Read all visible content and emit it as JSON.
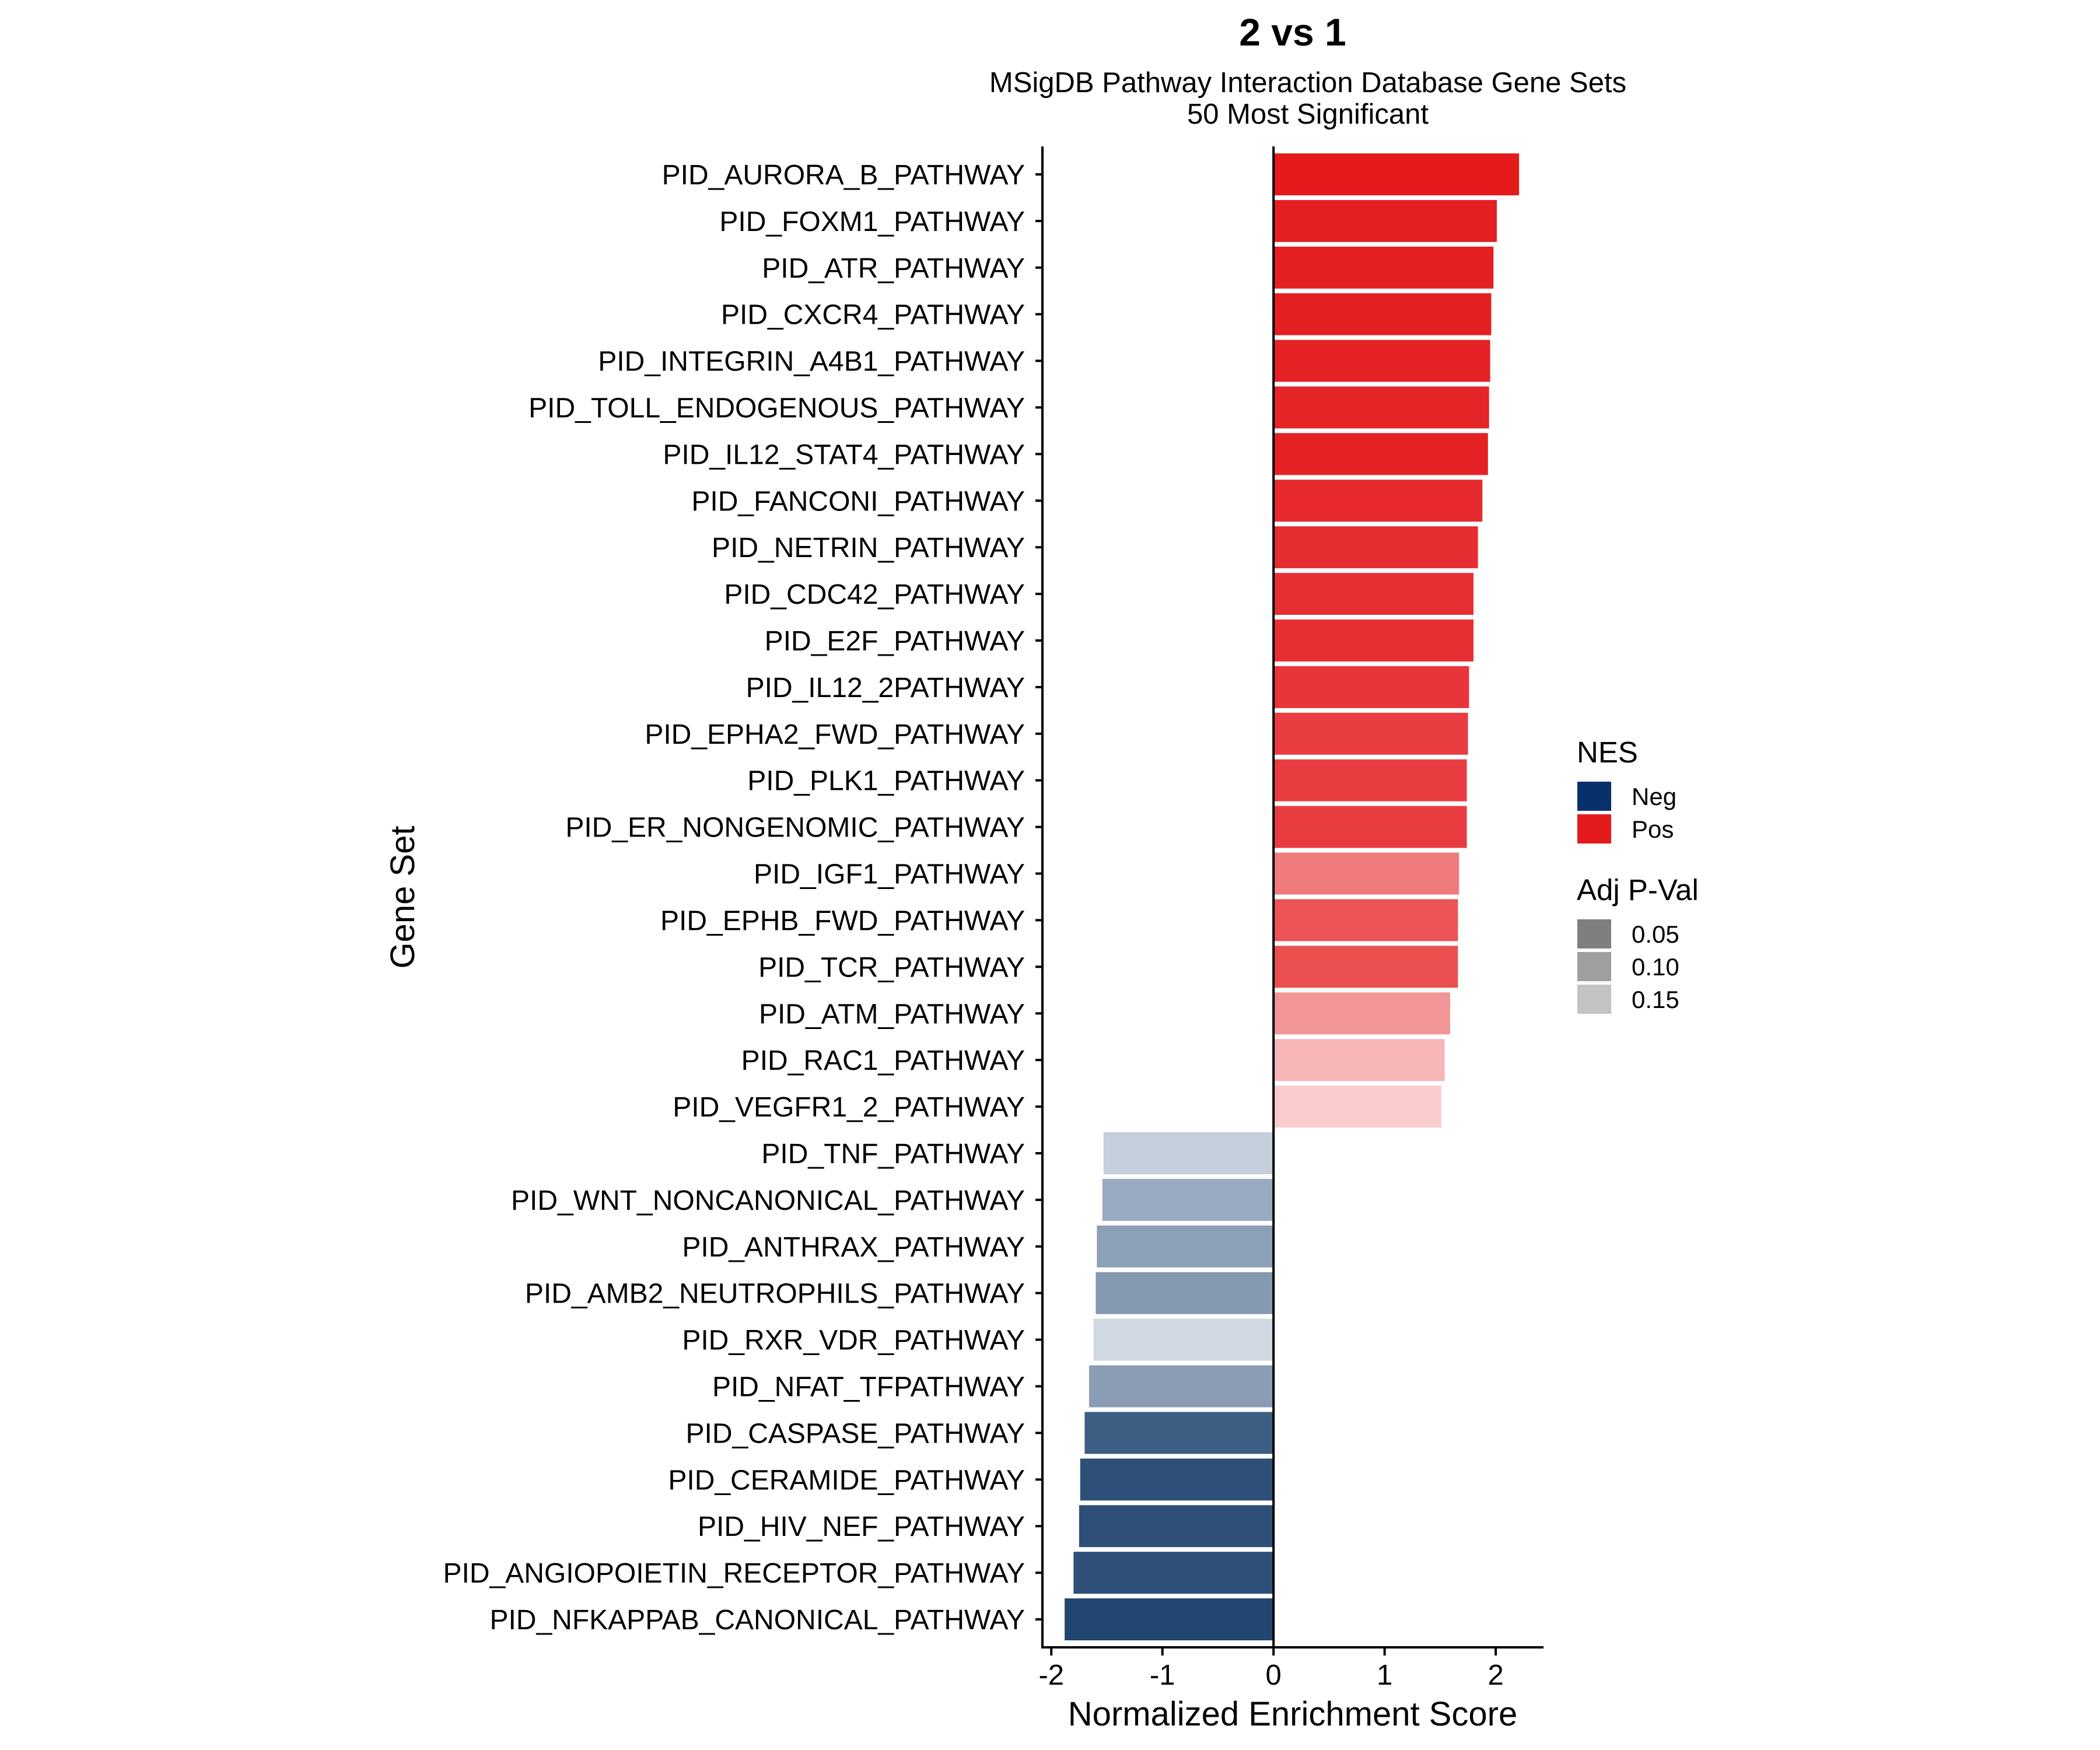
{
  "chart_data": {
    "type": "bar",
    "orientation": "horizontal",
    "title": "2 vs 1",
    "subtitle": [
      "MSigDB Pathway Interaction Database Gene Sets",
      "50 Most Significant"
    ],
    "xlabel": "Normalized Enrichment Score",
    "ylabel": "Gene Set",
    "xlim": [
      -2.08,
      2.43
    ],
    "xticks": [
      -2,
      -1,
      0,
      1,
      2
    ],
    "xtick_labels": [
      "-2",
      "-1",
      "0",
      "1",
      "2"
    ],
    "grid": false,
    "legend_position": "right",
    "categories": [
      "PID_AURORA_B_PATHWAY",
      "PID_FOXM1_PATHWAY",
      "PID_ATR_PATHWAY",
      "PID_CXCR4_PATHWAY",
      "PID_INTEGRIN_A4B1_PATHWAY",
      "PID_TOLL_ENDOGENOUS_PATHWAY",
      "PID_IL12_STAT4_PATHWAY",
      "PID_FANCONI_PATHWAY",
      "PID_NETRIN_PATHWAY",
      "PID_CDC42_PATHWAY",
      "PID_E2F_PATHWAY",
      "PID_IL12_2PATHWAY",
      "PID_EPHA2_FWD_PATHWAY",
      "PID_PLK1_PATHWAY",
      "PID_ER_NONGENOMIC_PATHWAY",
      "PID_IGF1_PATHWAY",
      "PID_EPHB_FWD_PATHWAY",
      "PID_TCR_PATHWAY",
      "PID_ATM_PATHWAY",
      "PID_RAC1_PATHWAY",
      "PID_VEGFR1_2_PATHWAY",
      "PID_TNF_PATHWAY",
      "PID_WNT_NONCANONICAL_PATHWAY",
      "PID_ANTHRAX_PATHWAY",
      "PID_AMB2_NEUTROPHILS_PATHWAY",
      "PID_RXR_VDR_PATHWAY",
      "PID_NFAT_TFPATHWAY",
      "PID_CASPASE_PATHWAY",
      "PID_CERAMIDE_PATHWAY",
      "PID_HIV_NEF_PATHWAY",
      "PID_ANGIOPOIETIN_RECEPTOR_PATHWAY",
      "PID_NFKAPPAB_CANONICAL_PATHWAY"
    ],
    "values": [
      2.21,
      2.01,
      1.98,
      1.96,
      1.95,
      1.94,
      1.93,
      1.88,
      1.84,
      1.8,
      1.8,
      1.76,
      1.75,
      1.74,
      1.74,
      1.67,
      1.66,
      1.66,
      1.59,
      1.54,
      1.51,
      -1.53,
      -1.54,
      -1.59,
      -1.6,
      -1.62,
      -1.66,
      -1.7,
      -1.74,
      -1.75,
      -1.8,
      -1.88
    ],
    "colors": [
      "#e41a1c",
      "#e42022",
      "#e42022",
      "#e42022",
      "#e52327",
      "#e52628",
      "#e42226",
      "#e62a2e",
      "#e62d31",
      "#e72f33",
      "#e72f33",
      "#e8353a",
      "#e93d42",
      "#e93d42",
      "#e93d42",
      "#ef7b7c",
      "#eb5354",
      "#eb5050",
      "#f29596",
      "#f6b5b7",
      "#f8cbcc",
      "#c5cfdb",
      "#98aabf",
      "#8ca0b6",
      "#8599b1",
      "#d0d8e1",
      "#8a9db4",
      "#3d5e83",
      "#2e5078",
      "#2e5078",
      "#2f5179",
      "#21466f"
    ],
    "legend": {
      "nes": {
        "title": "NES",
        "items": [
          {
            "label": "Neg",
            "color": "#08306b"
          },
          {
            "label": "Pos",
            "color": "#e41a1c"
          }
        ]
      },
      "pval": {
        "title": "Adj P-Val",
        "items": [
          {
            "label": "0.05",
            "color": "#7f7f7f"
          },
          {
            "label": "0.10",
            "color": "#9f9f9f"
          },
          {
            "label": "0.15",
            "color": "#c3c3c3"
          }
        ]
      }
    }
  }
}
